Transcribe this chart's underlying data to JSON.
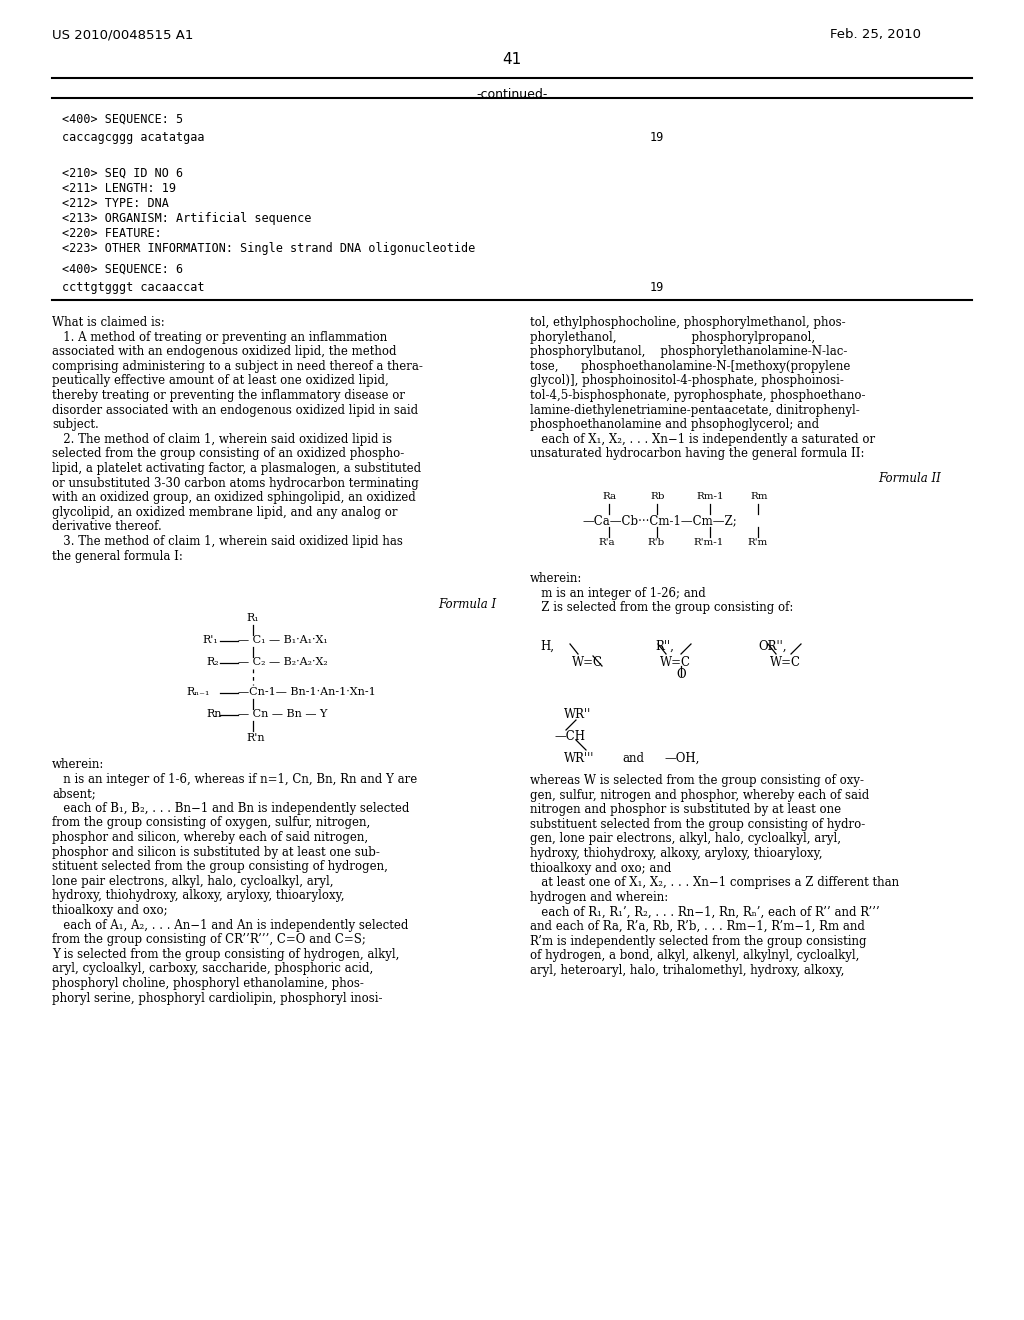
{
  "bg_color": "#ffffff",
  "patent_num": "US 2010/0048515 A1",
  "patent_date": "Feb. 25, 2010",
  "page_num": "41",
  "seq5_line": "caccagcggg acatatgaa",
  "seq5_len": "19",
  "seq6_meta": [
    "<210> SEQ ID NO 6",
    "<211> LENGTH: 19",
    "<212> TYPE: DNA",
    "<213> ORGANISM: Artificial sequence",
    "<220> FEATURE:",
    "<223> OTHER INFORMATION: Single strand DNA oligonucleotide"
  ],
  "seq6_line": "ccttgtgggt cacaaccat",
  "seq6_len": "19",
  "left_col": [
    "What is claimed is:",
    "   1. A method of treating or preventing an inflammation",
    "associated with an endogenous oxidized lipid, the method",
    "comprising administering to a subject in need thereof a thera-",
    "peutically effective amount of at least one oxidized lipid,",
    "thereby treating or preventing the inflammatory disease or",
    "disorder associated with an endogenous oxidized lipid in said",
    "subject.",
    "   2. The method of claim 1, wherein said oxidized lipid is",
    "selected from the group consisting of an oxidized phospho-",
    "lipid, a platelet activating factor, a plasmalogen, a substituted",
    "or unsubstituted 3-30 carbon atoms hydrocarbon terminating",
    "with an oxidized group, an oxidized sphingolipid, an oxidized",
    "glycolipid, an oxidized membrane lipid, and any analog or",
    "derivative thereof.",
    "   3. The method of claim 1, wherein said oxidized lipid has",
    "the general formula I:"
  ],
  "right_col_top": [
    "tol, ethylphosphocholine, phosphorylmethanol, phos-",
    "phorylethanol,                    phosphorylpropanol,",
    "phosphorylbutanol,    phosphorylethanolamine-N-lac-",
    "tose,      phosphoethanolamine-N-[methoxy(propylene",
    "glycol)], phosphoinositol-4-phosphate, phosphoinosi-",
    "tol-4,5-bisphosphonate, pyrophosphate, phosphoethano-",
    "lamine-diethylenetriamine-pentaacetate, dinitrophenyl-",
    "phosphoethanolamine and phsophoglycerol; and",
    "   each of X₁, X₂, . . . Xn−1 is independently a saturated or",
    "unsaturated hydrocarbon having the general formula II:"
  ],
  "right_col_mid": [
    "wherein:",
    "   m is an integer of 1-26; and",
    "   Z is selected from the group consisting of:"
  ],
  "right_col_bot": [
    "whereas W is selected from the group consisting of oxy-",
    "gen, sulfur, nitrogen and phosphor, whereby each of said",
    "nitrogen and phosphor is substituted by at least one",
    "substituent selected from the group consisting of hydro-",
    "gen, lone pair electrons, alkyl, halo, cycloalkyl, aryl,",
    "hydroxy, thiohydroxy, alkoxy, aryloxy, thioaryloxy,",
    "thioalkoxy and oxo; and",
    "   at least one of X₁, X₂, . . . Xn−1 comprises a Z different than",
    "hydrogen and wherein:",
    "   each of R₁, R₁’, R₂, . . . Rn−1, Rn, Rₙ’, each of R’’ and R’’’",
    "and each of Ra, R’a, Rb, R’b, . . . Rm−1, R’m−1, Rm and",
    "R’m is independently selected from the group consisting",
    "of hydrogen, a bond, alkyl, alkenyl, alkylnyl, cycloalkyl,",
    "aryl, heteroaryl, halo, trihalomethyl, hydroxy, alkoxy,"
  ],
  "wherein_left": [
    "wherein:",
    "   n is an integer of 1-6, whereas if n=1, Cn, Bn, Rn and Y are",
    "absent;",
    "   each of B₁, B₂, . . . Bn−1 and Bn is independently selected",
    "from the group consisting of oxygen, sulfur, nitrogen,",
    "phosphor and silicon, whereby each of said nitrogen,",
    "phosphor and silicon is substituted by at least one sub-",
    "stituent selected from the group consisting of hydrogen,",
    "lone pair electrons, alkyl, halo, cycloalkyl, aryl,",
    "hydroxy, thiohydroxy, alkoxy, aryloxy, thioaryloxy,",
    "thioalkoxy and oxo;",
    "   each of A₁, A₂, . . . An−1 and An is independently selected",
    "from the group consisting of CR’’R’’’, C=O and C=S;",
    "Y is selected from the group consisting of hydrogen, alkyl,",
    "aryl, cycloalkyl, carboxy, saccharide, phosphoric acid,",
    "phosphoryl choline, phosphoryl ethanolamine, phos-",
    "phoryl serine, phosphoryl cardiolipin, phosphoryl inosi-"
  ]
}
